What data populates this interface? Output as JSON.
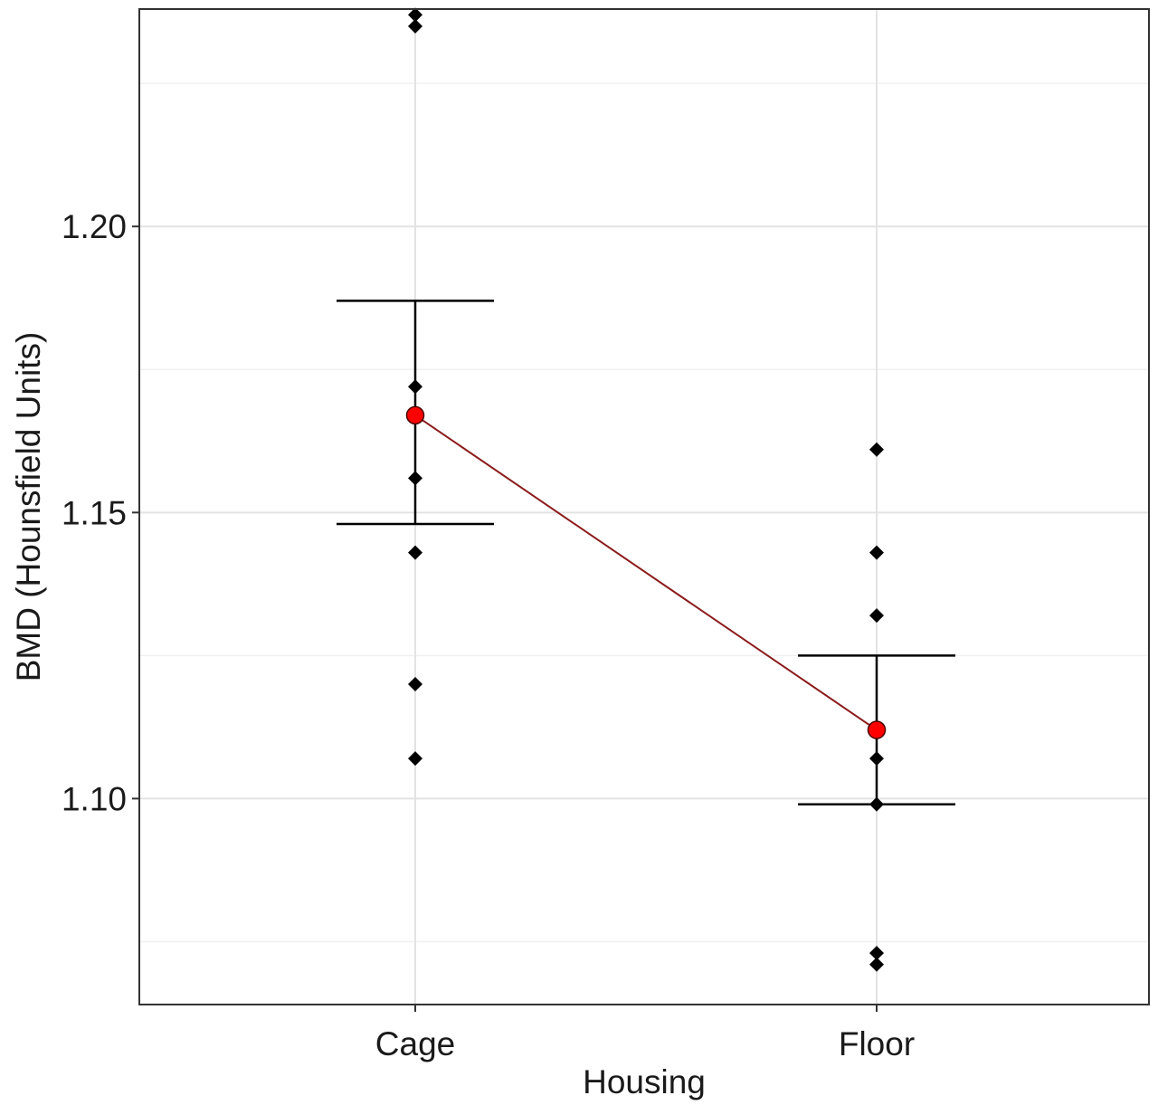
{
  "chart_data": {
    "type": "scatter",
    "title": "",
    "xlabel": "Housing",
    "ylabel": "BMD (Hounsfield Units)",
    "categories": [
      "Cage",
      "Floor"
    ],
    "ylim": [
      1.064,
      1.238
    ],
    "yticks": [
      1.1,
      1.15,
      1.2
    ],
    "ytick_labels": [
      "1.10",
      "1.15",
      "1.20"
    ],
    "grid": true,
    "points": [
      {
        "group": "Cage",
        "values": [
          1.237,
          1.235,
          1.172,
          1.156,
          1.143,
          1.12,
          1.107
        ]
      },
      {
        "group": "Floor",
        "values": [
          1.161,
          1.143,
          1.132,
          1.112,
          1.107,
          1.099,
          1.073,
          1.071
        ]
      }
    ],
    "means": [
      {
        "group": "Cage",
        "value": 1.167,
        "error_low": 1.148,
        "error_high": 1.187
      },
      {
        "group": "Floor",
        "value": 1.112,
        "error_low": 1.099,
        "error_high": 1.125
      }
    ],
    "colors": {
      "points": "#000000",
      "mean_fill": "#ff0000",
      "mean_line": "#8b1a1a",
      "error_bars": "#000000",
      "grid": "#e3e3e3",
      "panel_border": "#333333"
    }
  }
}
